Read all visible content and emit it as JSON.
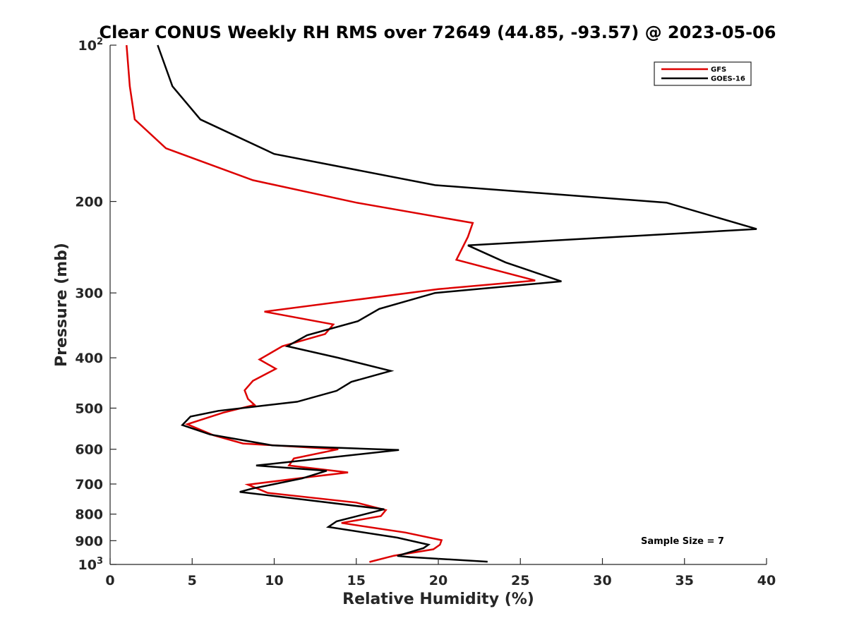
{
  "chart_data": {
    "type": "line",
    "title": "Clear CONUS Weekly RH RMS over 72649 (44.85, -93.57) @ 2023-05-06",
    "xlabel": "Relative Humidity (%)",
    "ylabel": "Pressure (mb)",
    "xlim": [
      0,
      40
    ],
    "ylim": [
      100,
      1000
    ],
    "yscale": "log",
    "y_reversed": true,
    "x_ticks": [
      "0",
      "5",
      "10",
      "15",
      "20",
      "25",
      "30",
      "35",
      "40"
    ],
    "x_tick_values": [
      0,
      5,
      10,
      15,
      20,
      25,
      30,
      35,
      40
    ],
    "y_ticks": [
      {
        "value": 100,
        "base": "10",
        "exp": "2"
      },
      {
        "value": 200,
        "label": "200"
      },
      {
        "value": 300,
        "label": "300"
      },
      {
        "value": 400,
        "label": "400"
      },
      {
        "value": 500,
        "label": "500"
      },
      {
        "value": 600,
        "label": "600"
      },
      {
        "value": 700,
        "label": "700"
      },
      {
        "value": 800,
        "label": "800"
      },
      {
        "value": 900,
        "label": "900"
      },
      {
        "value": 1000,
        "base": "10",
        "exp": "3"
      }
    ],
    "grid": false,
    "legend_position": "top-right",
    "annotation": "Sample Size = 7",
    "series": [
      {
        "name": "GFS",
        "color": "#dd0000",
        "points": [
          [
            1.0,
            100
          ],
          [
            1.2,
            120
          ],
          [
            1.5,
            139
          ],
          [
            3.4,
            158
          ],
          [
            8.7,
            182
          ],
          [
            15.0,
            201
          ],
          [
            22.1,
            220
          ],
          [
            21.8,
            234
          ],
          [
            21.1,
            259
          ],
          [
            25.9,
            284
          ],
          [
            20.0,
            295
          ],
          [
            9.4,
            326
          ],
          [
            13.6,
            345
          ],
          [
            13.1,
            360
          ],
          [
            10.5,
            380
          ],
          [
            9.1,
            403
          ],
          [
            10.1,
            420
          ],
          [
            8.7,
            443
          ],
          [
            8.2,
            462
          ],
          [
            8.4,
            480
          ],
          [
            8.8,
            493
          ],
          [
            6.9,
            510
          ],
          [
            4.7,
            537
          ],
          [
            6.3,
            564
          ],
          [
            8.1,
            585
          ],
          [
            13.9,
            600
          ],
          [
            11.2,
            625
          ],
          [
            10.9,
            645
          ],
          [
            14.5,
            665
          ],
          [
            11.9,
            680
          ],
          [
            8.4,
            702
          ],
          [
            9.6,
            728
          ],
          [
            15.0,
            760
          ],
          [
            16.8,
            786
          ],
          [
            16.5,
            807
          ],
          [
            14.1,
            832
          ],
          [
            18.0,
            868
          ],
          [
            20.2,
            898
          ],
          [
            20.1,
            916
          ],
          [
            19.7,
            935
          ],
          [
            17.3,
            962
          ],
          [
            15.8,
            989
          ]
        ]
      },
      {
        "name": "GOES-16",
        "color": "#000000",
        "points": [
          [
            2.9,
            100
          ],
          [
            3.8,
            120
          ],
          [
            5.5,
            139
          ],
          [
            10.0,
            162
          ],
          [
            19.8,
            186
          ],
          [
            33.9,
            201
          ],
          [
            39.4,
            226
          ],
          [
            21.8,
            243
          ],
          [
            24.1,
            262
          ],
          [
            27.5,
            285
          ],
          [
            19.8,
            300
          ],
          [
            16.4,
            322
          ],
          [
            15.1,
            340
          ],
          [
            12.0,
            362
          ],
          [
            10.8,
            380
          ],
          [
            13.9,
            400
          ],
          [
            17.1,
            424
          ],
          [
            14.7,
            445
          ],
          [
            13.8,
            463
          ],
          [
            11.4,
            486
          ],
          [
            6.6,
            506
          ],
          [
            4.9,
            519
          ],
          [
            4.4,
            539
          ],
          [
            6.1,
            562
          ],
          [
            9.9,
            590
          ],
          [
            17.6,
            602
          ],
          [
            8.9,
            645
          ],
          [
            13.2,
            660
          ],
          [
            11.7,
            683
          ],
          [
            8.6,
            715
          ],
          [
            7.9,
            725
          ],
          [
            16.7,
            783
          ],
          [
            13.8,
            826
          ],
          [
            13.3,
            847
          ],
          [
            17.5,
            888
          ],
          [
            19.4,
            916
          ],
          [
            19.1,
            930
          ],
          [
            17.5,
            963
          ],
          [
            18.3,
            968
          ],
          [
            23.0,
            988
          ]
        ]
      }
    ]
  }
}
